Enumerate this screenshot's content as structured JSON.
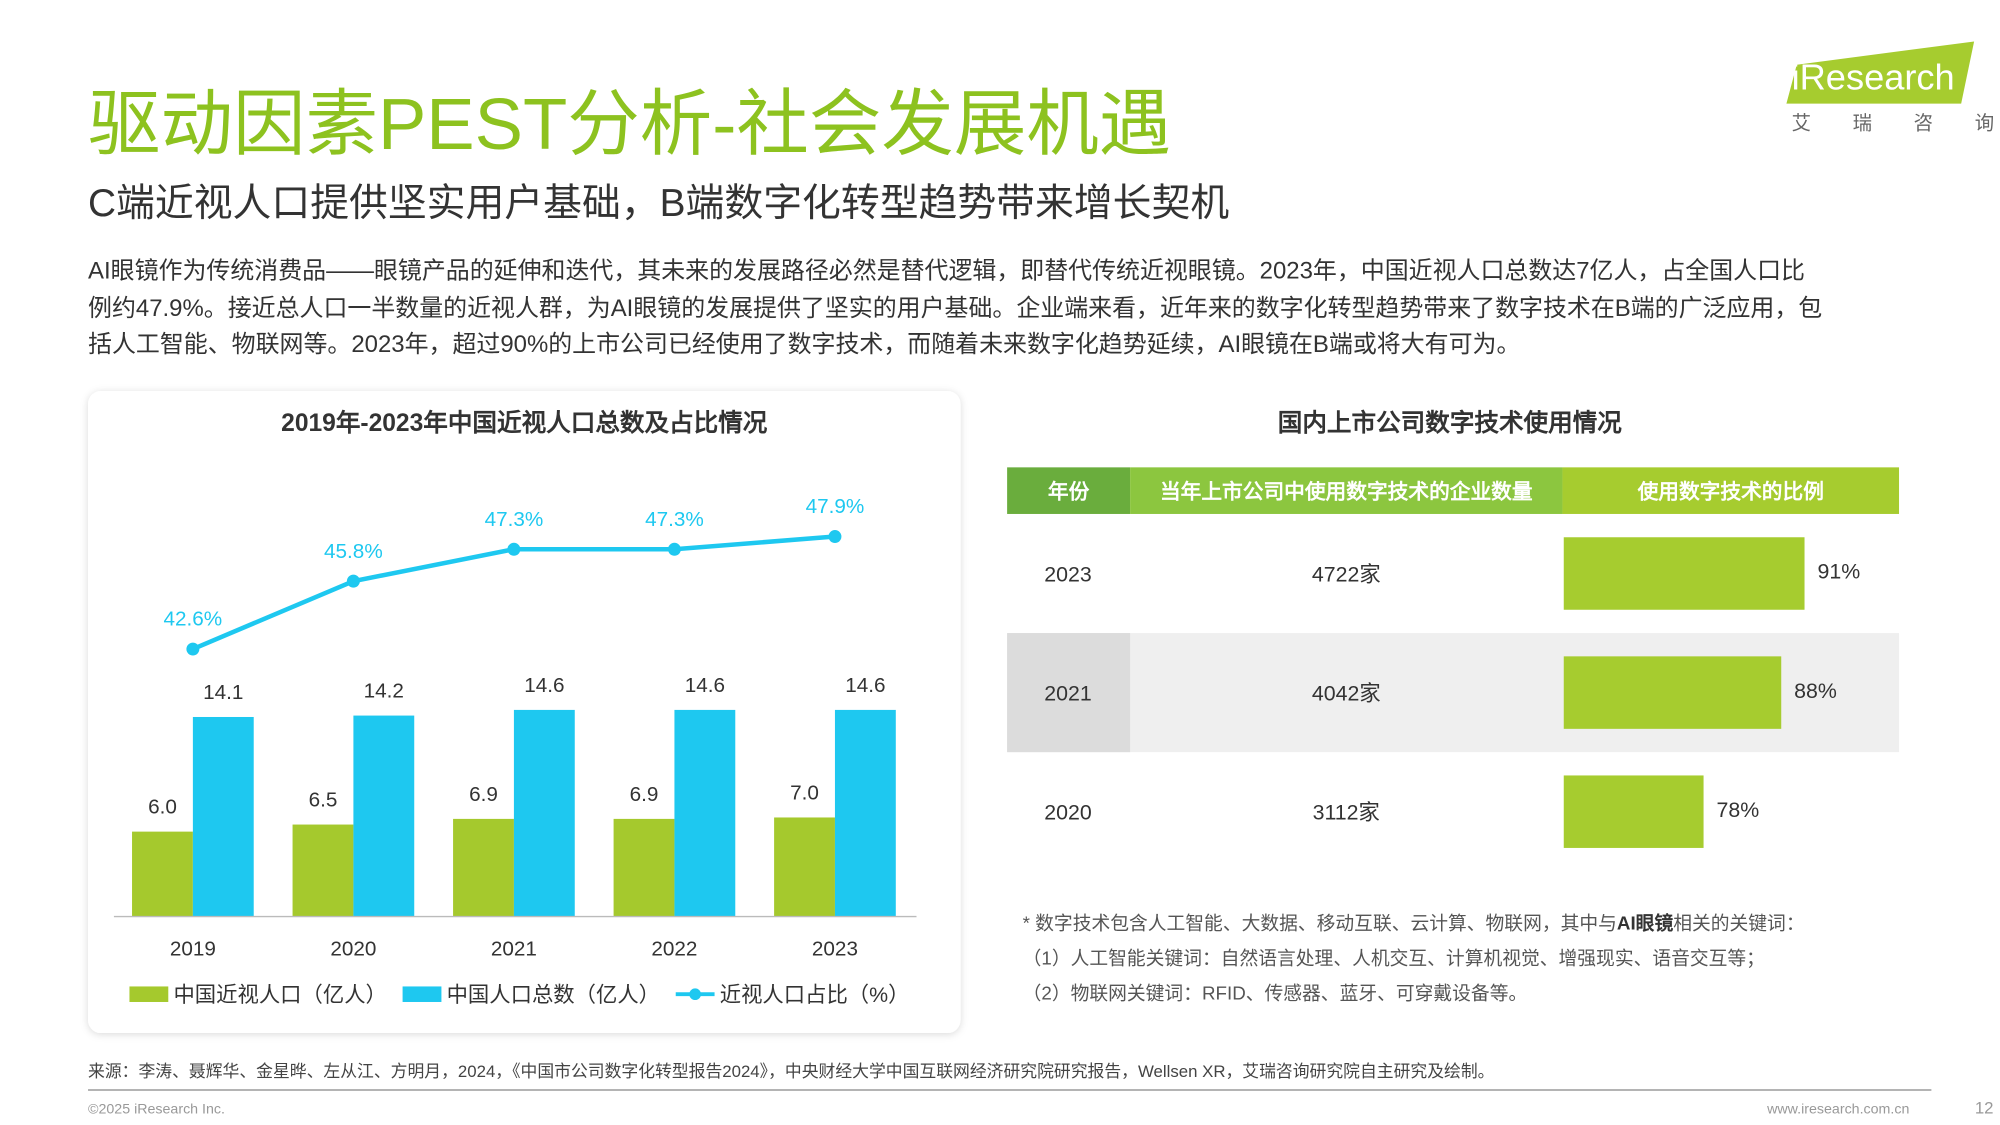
{
  "header": {
    "title": "驱动因素PEST分析-社会发展机遇",
    "subtitle": "C端近视人口提供坚实用户基础，B端数字化转型趋势带来增长契机",
    "logo": "iResearch",
    "logo_sub": "艾 瑞 咨 询"
  },
  "body": {
    "lines": [
      "AI眼镜作为传统消费品——眼镜产品的延伸和迭代，其未来的发展路径必然是替代逻辑，即替代传统近视眼镜。2023年，中国近视人口总数达7亿人，占全国人口比",
      "例约47.9%。接近总人口一半数量的近视人群，为AI眼镜的发展提供了坚实的用户基础。企业端来看，近年来的数字化转型趋势带来了数字技术在B端的广泛应用，包",
      "括人工智能、物联网等。2023年，超过90%的上市公司已经使用了数字技术，而随着未来数字化趋势延续，AI眼镜在B端或将大有可为。"
    ]
  },
  "chart_data": {
    "type": "bar",
    "title": "2019年-2023年中国近视人口总数及占比情况",
    "categories": [
      "2019",
      "2020",
      "2021",
      "2022",
      "2023"
    ],
    "ylim": [
      0,
      30
    ],
    "y2lim": [
      30,
      50
    ],
    "series": [
      {
        "name": "中国近视人口（亿人）",
        "type": "bar",
        "color": "#a5c92d",
        "values": [
          6.0,
          6.5,
          6.9,
          6.9,
          7.0
        ],
        "value_labels": [
          "6.0",
          "6.5",
          "6.9",
          "6.9",
          "7.0"
        ]
      },
      {
        "name": "中国人口总数（亿人）",
        "type": "bar",
        "color": "#1ec8f0",
        "values": [
          14.1,
          14.2,
          14.6,
          14.6,
          14.6
        ],
        "value_labels": [
          "14.1",
          "14.2",
          "14.6",
          "14.6",
          "14.6"
        ]
      },
      {
        "name": "近视人口占比（%）",
        "type": "line",
        "axis": "y2",
        "color": "#1ec8f0",
        "values": [
          42.6,
          45.8,
          47.3,
          47.3,
          47.9
        ],
        "value_labels": [
          "42.6%",
          "45.8%",
          "47.3%",
          "47.3%",
          "47.9%"
        ]
      }
    ]
  },
  "table": {
    "title": "国内上市公司数字技术使用情况",
    "headers": [
      "年份",
      "当年上市公司中使用数字技术的企业数量",
      "使用数字技术的比例"
    ],
    "xlim": [
      60,
      100
    ],
    "rows": [
      {
        "year": "2023",
        "count": "4722家",
        "ratio": 91,
        "ratio_label": "91%"
      },
      {
        "year": "2021",
        "count": "4042家",
        "ratio": 88,
        "ratio_label": "88%"
      },
      {
        "year": "2020",
        "count": "3112家",
        "ratio": 78,
        "ratio_label": "78%"
      }
    ]
  },
  "notes": [
    {
      "pre": "* 数字技术包含人工智能、大数据、移动互联、云计算、物联网，其中与",
      "bold": "AI眼镜",
      "post": "相关的关键词："
    },
    "（1）人工智能关键词：自然语言处理、人机交互、计算机视觉、增强现实、语音交互等；",
    "（2）物联网关键词：RFID、传感器、蓝牙、可穿戴设备等。"
  ],
  "footer": {
    "source": "来源：李涛、聂辉华、金星晔、左从江、方明月，2024，《中国市公司数字化转型报告2024》，中央财经大学中国互联网经济研究院研究报告，Wellsen XR，艾瑞咨询研究院自主研究及绘制。",
    "copyright": "©2025 iResearch Inc.",
    "website": "www.iresearch.com.cn",
    "page": "12"
  }
}
